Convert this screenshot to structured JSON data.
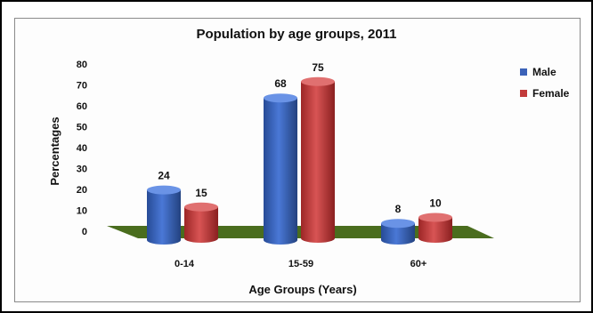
{
  "chart_data": {
    "type": "bar",
    "title": "Population by age groups, 2011",
    "xlabel": "Age Groups (Years)",
    "ylabel": "Percentages",
    "categories": [
      "0-14",
      "15-59",
      "60+"
    ],
    "series": [
      {
        "name": "Male",
        "values": [
          24,
          68,
          8
        ],
        "color": "#3b62b8"
      },
      {
        "name": "Female",
        "values": [
          15,
          75,
          10
        ],
        "color": "#c23b3b"
      }
    ],
    "ylim": [
      0,
      80
    ],
    "yticks": [
      0,
      10,
      20,
      30,
      40,
      50,
      60,
      70,
      80
    ],
    "grid": false,
    "legend": "right",
    "floor_color": "#4a6d1e"
  }
}
